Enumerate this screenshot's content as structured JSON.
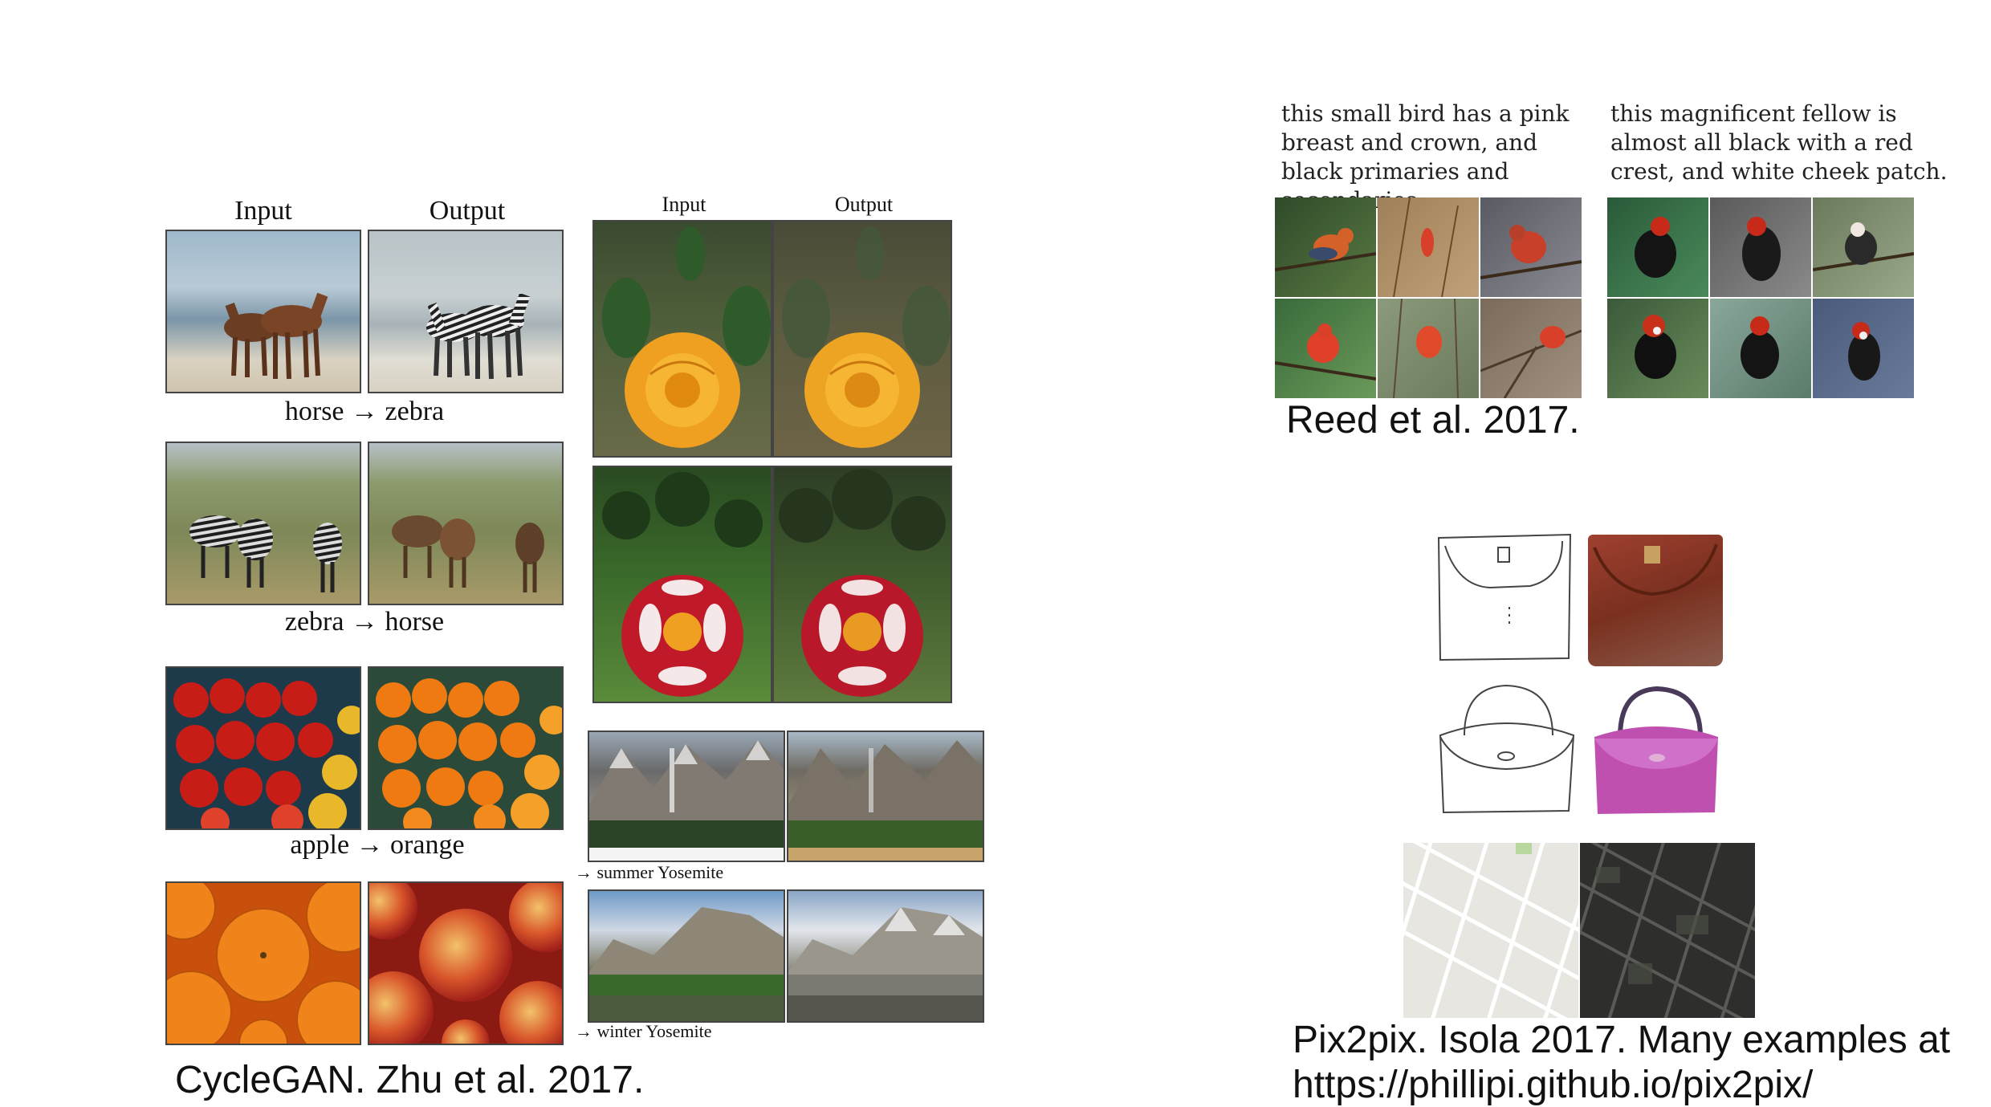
{
  "cyclegan": {
    "left_header_input": "Input",
    "left_header_output": "Output",
    "right_header_input": "Input",
    "right_header_output": "Output",
    "label_horse_zebra": "horse → zebra",
    "label_zebra_horse": "zebra → horse",
    "label_apple_orange": "apple → orange",
    "label_summer": "→ summer Yosemite",
    "label_winter": "→ winter Yosemite",
    "caption": "CycleGAN. Zhu et al. 2017."
  },
  "reed": {
    "text_left": "this small bird has a pink breast and crown, and black primaries and secondaries.",
    "text_right": "this magnificent fellow is almost all black with a red crest, and white cheek patch.",
    "caption": "Reed et al. 2017."
  },
  "pix2pix": {
    "caption_line1": "Pix2pix. Isola 2017. Many examples at",
    "caption_line2": "https://phillipi.github.io/pix2pix/"
  }
}
